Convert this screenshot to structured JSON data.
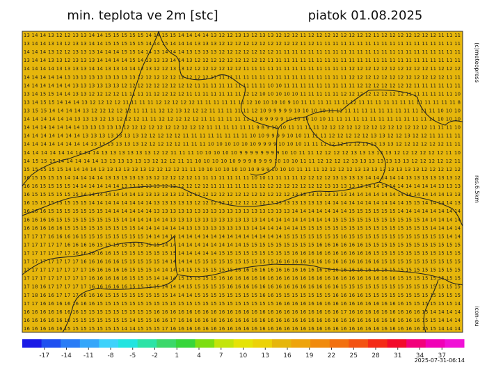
{
  "header": {
    "title": "min. teplota ve 2m [stc]",
    "date": "piatok 01.08.2025"
  },
  "side_labels": {
    "copyright": "(c)meteopress",
    "resolution": "res.6.5km",
    "model": "icon-eu"
  },
  "timestamp": "2025-07-31-06:14",
  "map": {
    "background": "#e6b60c",
    "rows": [
      "13 14 14 13 12 12 13 13 14 14 15 15 15 15 15 14 14 15 15 14 14 14 14 13 12 12 13 13 12 13 13 12 12 12 11 12 12 12 12 12 12 12 12 11 12 12 12 12 12 12 12 11 11 11",
      "13 14 14 13 13 12 13 13 14 14 15 15 15 15 15 14 14 15 14 14 14 13 13 13 12 12 12 12 12 12 12 12 12 12 11 12 11 11 11 11 11 11 11 11 11 11 11 11 11 11 11 11 11 11",
      "14 14 14 13 12 12 13 13 13 14 14 14 15 15 14 14 13 14 14 14 13 13 13 13 12 12 12 12 12 12 12 11 11 11 11 11 11 11 11 11 11 11 11 11 11 11 11 11 11 11 11 11 11 11",
      "13 14 14 13 13 12 13 13 13 14 14 14 14 15 14 13 13 13 14 14 13 12 12 12 12 12 12 12 12 12 11 11 11 11 11 11 11 11 11 11 11 11 11 11 11 11 11 11 11 11 11 11 11 11",
      "14 14 14 14 13 13 13 13 14 14 13 13 14 14 13 13 12 12 13 13 12 12 12 12 12 12 12 11 11 11 11 11 11 11 11 11 11 11 11 11 12 12 12 12 12 12 12 12 12 12 11 12 12 12",
      "14 14 14 14 14 13 13 13 13 13 13 13 13 13 12 12 12 12 12 12 12 12 12 11 11 11 11 11 11 11 11 11 11 11 11 11 11 11 11 11 12 12 12 12 12 12 12 12 12 12 12 12 11 11",
      "14 14 14 14 14 14 13 13 13 13 13 13 12 12 12 12 12 12 12 12 12 11 11 11 11 11 11 11 11 11 10 10 11 11 11 11 11 11 11 11 11 12 12 12 12 12 12 12 11 11 11 11 11 11",
      "13 14 15 15 14 14 13 13 12 12 12 12 11 11 11 11 12 12 12 12 11 11 11 11 11 11 11 12 12 10 10 10 10 10 11 11 11 11 11 12 12 12 12 12 12 12 12 11 11 11 11 11 11 10",
      "13 14 15 15 14 14 14 13 12 12 12 12 11 11 11 11 12 12 12 12 12 11 11 11 11 11 11 12 10 10 10 10 9 10 11 11 11 11 11 11 12 11 11 11 11 11 11 11 11 11 11 11 11 8",
      "13 15 15 14 14 14 14 13 12 12 12 12 12 11 11 11 12 12 13 12 12 12 11 11 11 11 11 12 10 9 9 9 9 9 10 10 10 10 11 11 11 11 11 11 11 11 11 11 11 11 11 10 10 10",
      "14 14 14 14 14 14 13 13 13 12 13 12 12 12 11 11 12 12 12 12 12 11 11 11 11 11 11 11 8 9 9 9 9 10 10 10 10 10 11 11 11 11 11 11 11 11 11 11 11 11 11 10 10 10",
      "14 14 14 14 14 14 14 13 13 13 13 13 12 12 12 12 12 12 12 12 12 12 11 11 11 11 11 11 9 8 9 10 10 11 11 11 11 12 12 12 12 12 12 12 12 12 12 12 12 12 11 11 11 10",
      "14 14 14 14 14 14 14 13 13 13 13 13 13 13 12 12 12 12 12 11 11 11 11 11 11 11 11 10 10 9 9 9 9 10 10 11 11 11 12 12 12 12 12 13 13 12 12 13 12 12 11 11 11 11",
      "14 14 14 14 14 14 14 14 13 13 13 13 13 13 12 12 12 12 12 11 11 11 10 10 10 10 10 10 9 9 9 9 10 10 10 11 11 11 12 12 12 12 13 13 13 13 12 12 12 12 12 12 11 11",
      "14 14 14 14 14 14 14 14 14 13 13 13 13 13 13 12 12 11 11 11 10 10 10 10 10 9 9 9 9 9 9 9 9 10 10 11 11 12 12 12 12 13 13 13 13 13 12 12 12 12 12 12 11 10",
      "14 15 15 15 14 14 14 14 14 13 13 13 13 13 13 12 12 12 11 11 10 10 10 10 10 9 9 9 8 9 9 9 10 10 10 11 11 12 12 12 12 13 13 13 13 13 13 13 12 12 12 12 12 11",
      "15 15 15 15 15 14 14 14 14 13 13 13 13 13 13 12 12 12 12 11 11 10 10 10 10 10 10 10 9 9 9 10 10 10 11 11 11 12 12 12 12 13 13 13 13 13 13 13 13 12 12 12 12 12",
      "16 15 15 15 15 14 14 14 14 14 13 13 13 13 13 13 12 12 12 12 12 11 11 11 11 11 11 11 10 10 11 11 11 11 12 12 12 12 13 13 13 13 14 14 14 14 14 13 13 13 13 13 13 12",
      "16 16 15 15 15 15 14 14 14 14 14 14 13 13 13 13 13 12 12 12 12 12 12 11 11 11 11 11 11 12 12 12 12 12 12 12 12 13 13 13 13 13 14 14 14 14 14 14 14 14 14 13 13 13",
      "16 15 15 15 15 15 15 14 14 14 14 14 14 14 13 13 13 13 13 12 12 12 12 12 12 12 12 12 12 12 12 12 12 13 13 13 13 13 13 13 14 14 14 14 14 14 14 14 14 14 14 14 13 13",
      "16 15 15 15 15 15 15 15 14 14 14 14 14 14 14 14 13 13 13 13 13 12 12 12 12 12 12 12 12 12 13 13 13 13 13 13 13 14 14 14 14 14 14 14 14 14 14 15 15 14 14 14 14 13",
      "16 16 16 15 15 15 15 15 15 15 14 14 14 14 14 14 13 13 13 13 13 13 13 13 13 13 13 13 13 13 13 13 13 14 14 14 14 14 14 14 15 15 15 15 15 15 14 14 14 14 14 14 14 14",
      "16 16 16 16 15 15 15 15 15 15 15 15 14 14 14 14 14 14 13 13 13 13 13 13 13 13 13 13 13 14 14 14 14 14 14 14 14 14 15 15 15 15 15 15 15 15 15 15 15 14 14 14 14 14",
      "16 16 16 16 16 15 15 15 15 15 15 15 15 15 14 14 14 14 14 14 13 13 13 13 13 13 13 13 14 14 14 14 14 14 15 15 15 15 15 15 15 15 15 15 15 15 15 15 15 15 14 14 14 14",
      "17 17 17 16 16 16 16 15 15 15 15 15 15 15 15 14 14 14 14 14 14 14 14 14 14 14 14 14 14 14 14 14 15 15 15 15 15 15 15 16 15 15 15 15 15 15 15 15 15 15 15 15 14 14",
      "17 17 17 17 17 16 16 16 16 15 15 15 15 15 15 15 15 14 14 14 14 14 14 14 14 14 14 15 15 15 15 15 15 15 15 15 16 16 16 16 16 16 15 15 15 15 15 15 15 15 15 15 15 15",
      "17 17 17 17 17 17 16 16 16 16 16 15 15 15 15 15 15 15 15 14 14 14 14 14 15 15 15 15 15 15 15 15 15 16 16 16 16 16 16 16 16 16 16 15 15 15 15 15 15 15 15 15 15 15",
      "17 17 17 17 17 17 17 16 16 16 16 16 15 15 15 15 15 14 14 14 14 15 15 15 15 15 15 15 15 15 15 16 16 16 16 16 16 16 16 16 16 16 16 16 15 15 15 15 15 15 15 15 15 15",
      "17 17 17 17 17 17 17 17 16 16 16 16 16 15 15 15 14 14 14 14 15 15 15 15 15 15 16 16 16 16 16 16 16 16 16 16 16 16 16 16 16 16 16 16 16 15 15 15 15 15 15 15 15 15",
      "17 17 17 17 17 17 17 17 16 16 16 16 16 15 15 15 14 14 14 15 15 15 15 15 16 16 16 16 16 16 16 16 16 16 16 16 16 16 16 16 16 16 16 16 16 16 15 15 15 15 15 15 15 15",
      "17 18 16 17 17 17 17 17 16 16 16 16 16 15 15 15 15 14 14 14 15 15 15 15 15 16 16 16 16 16 16 16 16 16 16 16 16 16 16 15 15 15 15 15 15 15 15 15 15 15 15 15 15 15",
      "17 18 16 16 17 17 17 16 16 16 15 15 15 15 15 15 15 15 14 14 14 15 15 15 15 15 15 15 15 16 16 15 15 15 15 15 15 15 16 16 16 16 15 15 15 15 15 15 15 15 15 15 15 15",
      "17 17 16 16 16 16 16 16 16 15 15 15 15 15 15 15 15 15 15 15 15 15 15 15 15 15 15 15 15 15 15 16 16 16 16 16 16 16 16 16 16 16 16 16 16 16 16 15 15 15 15 15 15 14",
      "16 16 16 16 16 16 16 15 15 15 15 15 15 15 15 15 16 16 16 16 16 16 16 16 16 16 16 16 16 16 16 16 16 16 16 16 16 16 16 17 16 16 16 16 16 16 16 16 16 15 14 14 14 14",
      "16 16 16 16 16 16 15 15 15 15 15 15 15 14 15 15 16 16 17 16 16 16 16 16 16 16 16 16 16 16 16 16 16 16 16 16 16 16 16 16 16 16 16 16 16 16 16 16 16 15 15 14 14 14",
      "16 16 16 16 16 15 15 15 15 15 15 15 14 14 15 15 15 17 16 16 16 16 16 16 16 16 16 16 16 16 16 16 16 16 16 16 16 16 16 16 16 16 16 16 16 16 16 16 16 15 15 14 14 14"
    ]
  },
  "colorbar": {
    "range": [
      -20,
      40
    ],
    "ticks": [
      -17,
      -14,
      -11,
      -8,
      -5,
      -2,
      1,
      4,
      7,
      10,
      13,
      16,
      19,
      22,
      25,
      28,
      31,
      34,
      37
    ],
    "colors": [
      "#1a1ae6",
      "#1f4ff0",
      "#2a7cf6",
      "#35a6fa",
      "#3ed2fb",
      "#22e4e0",
      "#2ce3a6",
      "#3cd86a",
      "#37d63a",
      "#7dde11",
      "#c3e40a",
      "#e5e306",
      "#ecd207",
      "#e6b60c",
      "#eea40c",
      "#f08a0d",
      "#f2700f",
      "#f35212",
      "#f42a16",
      "#f20a2a",
      "#f2007a",
      "#f000b6",
      "#f010d6"
    ]
  }
}
